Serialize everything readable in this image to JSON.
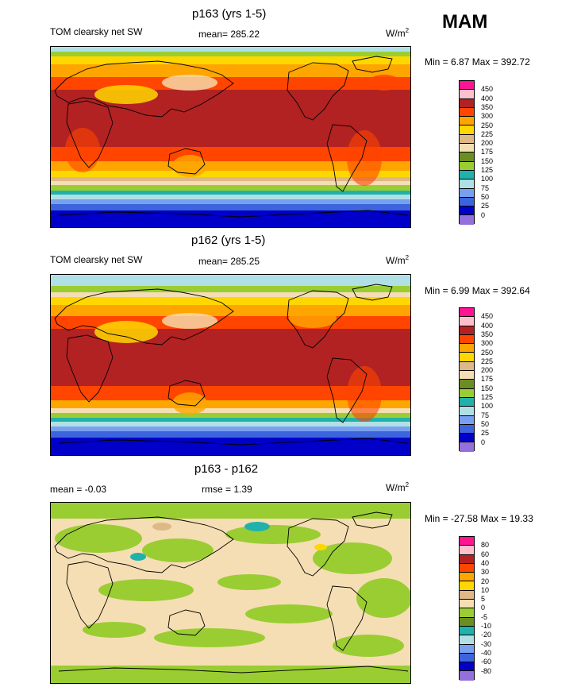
{
  "season": "MAM",
  "units_base": "W/m",
  "units_exp": "2",
  "panels": [
    {
      "title": "p163 (yrs 1-5)",
      "left": "TOM clearsky net SW",
      "mid": "mean= 285.22",
      "minmax": "Min =   6.87 Max = 392.72"
    },
    {
      "title": "p162 (yrs 1-5)",
      "left": "TOM clearsky net SW",
      "mid": "mean= 285.25",
      "minmax": "Min =   6.99 Max = 392.64"
    },
    {
      "title": "p163 - p162",
      "left": "mean =  -0.03",
      "mid": "rmse =   1.39",
      "minmax": "Min = -27.58 Max =  19.33"
    }
  ],
  "chart_data": [
    {
      "type": "heatmap",
      "title": "p163 (yrs 1-5)",
      "variable": "TOM clearsky net SW",
      "season": "MAM",
      "mean": 285.22,
      "min": 6.87,
      "max": 392.72,
      "units": "W/m2",
      "levels": [
        0,
        25,
        50,
        75,
        100,
        125,
        150,
        175,
        200,
        225,
        250,
        300,
        350,
        400,
        450
      ],
      "colors": [
        "#9370db",
        "#0000c8",
        "#3c64dc",
        "#78a0f0",
        "#b0e0e6",
        "#20b2aa",
        "#9acd32",
        "#6b8e23",
        "#f5deb3",
        "#deb887",
        "#ffd700",
        "#ffa500",
        "#ff4500",
        "#b22222",
        "#ffc0cb",
        "#ff1493"
      ],
      "level_labels": [
        "450",
        "400",
        "350",
        "300",
        "250",
        "225",
        "200",
        "175",
        "150",
        "125",
        "100",
        "75",
        "50",
        "25",
        "0"
      ]
    },
    {
      "type": "heatmap",
      "title": "p162 (yrs 1-5)",
      "variable": "TOM clearsky net SW",
      "season": "MAM",
      "mean": 285.25,
      "min": 6.99,
      "max": 392.64,
      "units": "W/m2",
      "levels": [
        0,
        25,
        50,
        75,
        100,
        125,
        150,
        175,
        200,
        225,
        250,
        300,
        350,
        400,
        450
      ],
      "colors": [
        "#9370db",
        "#0000c8",
        "#3c64dc",
        "#78a0f0",
        "#b0e0e6",
        "#20b2aa",
        "#9acd32",
        "#6b8e23",
        "#f5deb3",
        "#deb887",
        "#ffd700",
        "#ffa500",
        "#ff4500",
        "#b22222",
        "#ffc0cb",
        "#ff1493"
      ],
      "level_labels": [
        "450",
        "400",
        "350",
        "300",
        "250",
        "225",
        "200",
        "175",
        "150",
        "125",
        "100",
        "75",
        "50",
        "25",
        "0"
      ]
    },
    {
      "type": "heatmap",
      "title": "p163 - p162",
      "variable": "difference",
      "season": "MAM",
      "mean": -0.03,
      "rmse": 1.39,
      "min": -27.58,
      "max": 19.33,
      "units": "W/m2",
      "levels": [
        -80,
        -60,
        -40,
        -30,
        -20,
        -10,
        -5,
        0,
        5,
        10,
        20,
        30,
        40,
        60,
        80
      ],
      "colors": [
        "#9370db",
        "#0000c8",
        "#3c64dc",
        "#78a0f0",
        "#b0e0e6",
        "#20b2aa",
        "#6b8e23",
        "#9acd32",
        "#f5deb3",
        "#deb887",
        "#ffd700",
        "#ffa500",
        "#ff4500",
        "#b22222",
        "#ffc0cb",
        "#ff1493"
      ],
      "level_labels": [
        "80",
        "60",
        "40",
        "30",
        "20",
        "10",
        "5",
        "0",
        "-5",
        "-10",
        "-20",
        "-30",
        "-40",
        "-60",
        "-80"
      ]
    }
  ]
}
